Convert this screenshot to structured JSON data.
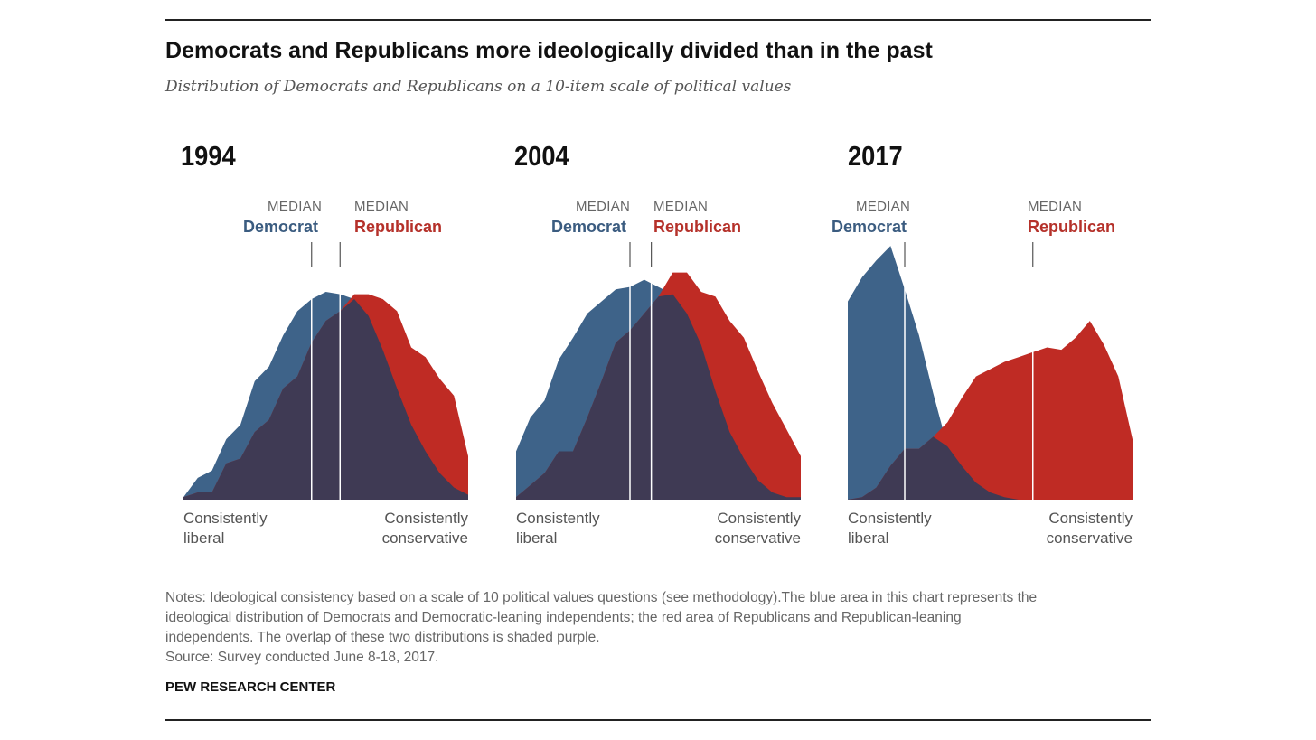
{
  "title": "Democrats and Republicans more ideologically divided than in the past",
  "subtitle": "Distribution of Democrats and Republicans on a 10-item scale of political values",
  "labels": {
    "median": "MEDIAN",
    "democrat": "Democrat",
    "republican": "Republican",
    "left_axis_line1": "Consistently",
    "left_axis_line2": "liberal",
    "right_axis_line1": "Consistently",
    "right_axis_line2": "conservative"
  },
  "colors": {
    "democrat": "#3e6389",
    "republican": "#bf2b24",
    "overlap": "#3f3a54",
    "median_line": "#ffffff"
  },
  "notes": {
    "line1": "Notes: Ideological consistency based on a scale of 10 political values questions (see methodology).The blue area in this chart represents the",
    "line2": "ideological distribution of Democrats and Democratic-leaning independents; the red area of Republicans and Republican-leaning",
    "line3": "independents. The overlap of these two distributions is shaded purple.",
    "source": "Source: Survey conducted June 8-18, 2017."
  },
  "org": "PEW RESEARCH CENTER",
  "chart_data": [
    {
      "type": "area",
      "title": "1994",
      "x": [
        0,
        1,
        2,
        3,
        4,
        5,
        6,
        7,
        8,
        9,
        10,
        11,
        12,
        13,
        14,
        15,
        16,
        17,
        18,
        19,
        20
      ],
      "series": [
        {
          "name": "Democrat",
          "values": [
            0.5,
            4.5,
            6.0,
            12.5,
            15.5,
            24.5,
            27.5,
            34.0,
            39.0,
            41.5,
            43.0,
            42.5,
            41.5,
            38.0,
            31.0,
            23.0,
            15.5,
            10.0,
            5.5,
            2.5,
            1.0
          ]
        },
        {
          "name": "Republican",
          "values": [
            0.5,
            1.5,
            1.5,
            7.5,
            8.5,
            14.0,
            16.5,
            23.0,
            25.5,
            32.5,
            37.0,
            39.0,
            42.5,
            42.5,
            41.5,
            39.0,
            31.5,
            29.5,
            25.0,
            21.5,
            9.0
          ]
        }
      ],
      "median_democrat": 9.0,
      "median_republican": 11.0
    },
    {
      "type": "area",
      "title": "2004",
      "x": [
        0,
        1,
        2,
        3,
        4,
        5,
        6,
        7,
        8,
        9,
        10,
        11,
        12,
        13,
        14,
        15,
        16,
        17,
        18,
        19,
        20
      ],
      "series": [
        {
          "name": "Democrat",
          "values": [
            10.0,
            17.0,
            20.5,
            29.0,
            33.5,
            38.5,
            41.0,
            43.5,
            44.0,
            45.5,
            44.0,
            42.5,
            38.5,
            32.0,
            22.5,
            14.0,
            8.5,
            4.0,
            1.5,
            0.5,
            0.5
          ]
        },
        {
          "name": "Republican",
          "values": [
            0.5,
            3.0,
            5.5,
            10.0,
            10.0,
            17.0,
            24.5,
            32.5,
            35.0,
            38.5,
            42.0,
            47.0,
            47.0,
            43.0,
            42.0,
            37.0,
            33.5,
            26.5,
            20.0,
            14.5,
            9.0
          ]
        }
      ],
      "median_democrat": 8.0,
      "median_republican": 9.5
    },
    {
      "type": "area",
      "title": "2017",
      "x": [
        0,
        1,
        2,
        3,
        4,
        5,
        6,
        7,
        8,
        9,
        10,
        11,
        12,
        13,
        14,
        15,
        16,
        17,
        18,
        19,
        20
      ],
      "series": [
        {
          "name": "Democrat",
          "values": [
            41.0,
            46.0,
            49.5,
            52.5,
            43.5,
            34.0,
            22.0,
            11.0,
            7.0,
            3.5,
            1.5,
            0.5,
            0,
            0,
            0,
            0,
            0,
            0,
            0,
            0,
            0
          ]
        },
        {
          "name": "Republican",
          "values": [
            0,
            0.5,
            2.5,
            7.0,
            10.5,
            10.5,
            13.0,
            16.0,
            21.0,
            25.5,
            27.0,
            28.5,
            29.5,
            30.5,
            31.5,
            31.0,
            33.5,
            37.0,
            32.0,
            25.5,
            12.5
          ]
        }
      ],
      "median_democrat": 4.0,
      "median_republican": 13.0
    }
  ]
}
